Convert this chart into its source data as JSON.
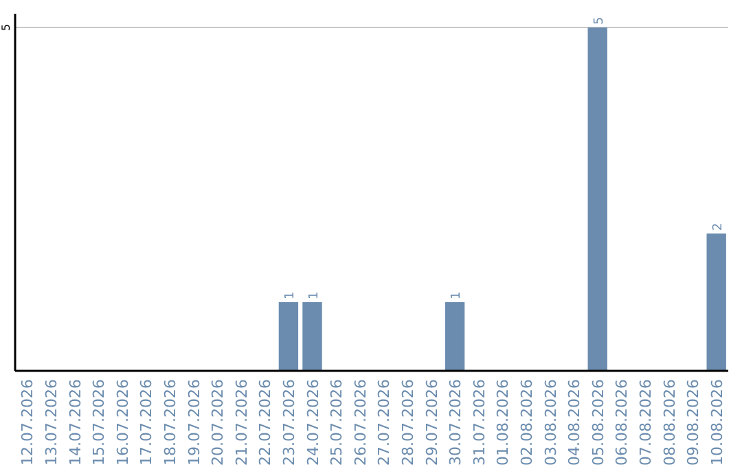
{
  "chart_data": {
    "type": "bar",
    "categories": [
      "12.07.2026",
      "13.07.2026",
      "14.07.2026",
      "15.07.2026",
      "16.07.2026",
      "17.07.2026",
      "18.07.2026",
      "19.07.2026",
      "20.07.2026",
      "21.07.2026",
      "22.07.2026",
      "23.07.2026",
      "24.07.2026",
      "25.07.2026",
      "26.07.2026",
      "27.07.2026",
      "28.07.2026",
      "29.07.2026",
      "30.07.2026",
      "31.07.2026",
      "01.08.2026",
      "02.08.2026",
      "03.08.2026",
      "04.08.2026",
      "05.08.2026",
      "06.08.2026",
      "07.08.2026",
      "08.08.2026",
      "09.08.2026",
      "10.08.2026"
    ],
    "values": [
      0,
      0,
      0,
      0,
      0,
      0,
      0,
      0,
      0,
      0,
      0,
      1,
      1,
      0,
      0,
      0,
      0,
      0,
      1,
      0,
      0,
      0,
      0,
      0,
      5,
      0,
      0,
      0,
      0,
      2
    ],
    "value_labels": [
      null,
      null,
      null,
      null,
      null,
      null,
      null,
      null,
      null,
      null,
      null,
      "1",
      "1",
      null,
      null,
      null,
      null,
      null,
      "1",
      null,
      null,
      null,
      null,
      null,
      "5",
      null,
      null,
      null,
      null,
      "2"
    ],
    "color": "#6b8cae",
    "ylim": [
      0,
      5.2
    ],
    "yticks": [
      5
    ],
    "grid": "y"
  }
}
